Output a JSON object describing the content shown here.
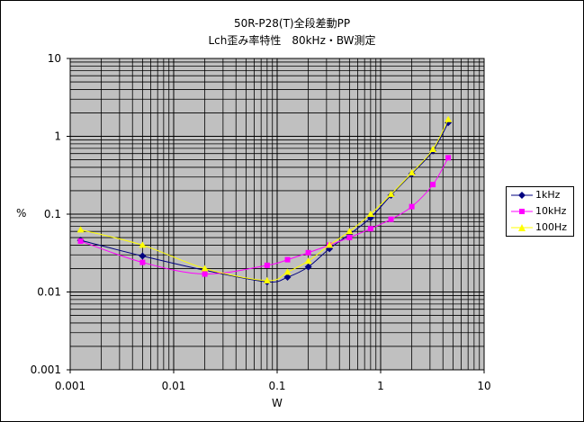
{
  "chart_data": {
    "type": "line",
    "title_line1": "50R-P28(T)全段差動PP",
    "title_line2": "Lch歪み率特性　80kHz・BW測定",
    "xlabel": "W",
    "ylabel": "%",
    "xscale": "log",
    "yscale": "log",
    "xlim": [
      0.001,
      10
    ],
    "ylim": [
      0.001,
      10
    ],
    "x_tick_labels": [
      "0.001",
      "0.01",
      "0.1",
      "1",
      "10"
    ],
    "y_tick_labels": [
      "0.001",
      "0.01",
      "0.1",
      "1",
      "10"
    ],
    "grid": true,
    "legend_position": "right",
    "series": [
      {
        "name": "1kHz",
        "color": "#000080",
        "marker": "diamond",
        "x": [
          0.00126,
          0.005,
          0.02,
          0.08,
          0.126,
          0.2,
          0.32,
          0.5,
          0.8,
          1.26,
          2.0,
          3.2,
          4.5
        ],
        "y": [
          0.046,
          0.029,
          0.019,
          0.0135,
          0.0155,
          0.021,
          0.036,
          0.055,
          0.09,
          0.175,
          0.33,
          0.65,
          1.5
        ]
      },
      {
        "name": "10kHz",
        "color": "#ff00ff",
        "marker": "square",
        "x": [
          0.00126,
          0.005,
          0.02,
          0.08,
          0.126,
          0.2,
          0.32,
          0.5,
          0.8,
          1.26,
          2.0,
          3.2,
          4.5
        ],
        "y": [
          0.045,
          0.024,
          0.017,
          0.022,
          0.026,
          0.032,
          0.04,
          0.05,
          0.065,
          0.086,
          0.125,
          0.24,
          0.53
        ]
      },
      {
        "name": "100Hz",
        "color": "#ffff00",
        "marker": "triangle",
        "x": [
          0.00126,
          0.005,
          0.02,
          0.08,
          0.126,
          0.2,
          0.32,
          0.5,
          0.8,
          1.26,
          2.0,
          3.2,
          4.5
        ],
        "y": [
          0.063,
          0.04,
          0.02,
          0.014,
          0.018,
          0.025,
          0.04,
          0.06,
          0.1,
          0.18,
          0.34,
          0.68,
          1.65
        ]
      }
    ]
  },
  "legend": {
    "items": [
      {
        "label": "1kHz"
      },
      {
        "label": "10kHz"
      },
      {
        "label": "100Hz"
      }
    ]
  }
}
